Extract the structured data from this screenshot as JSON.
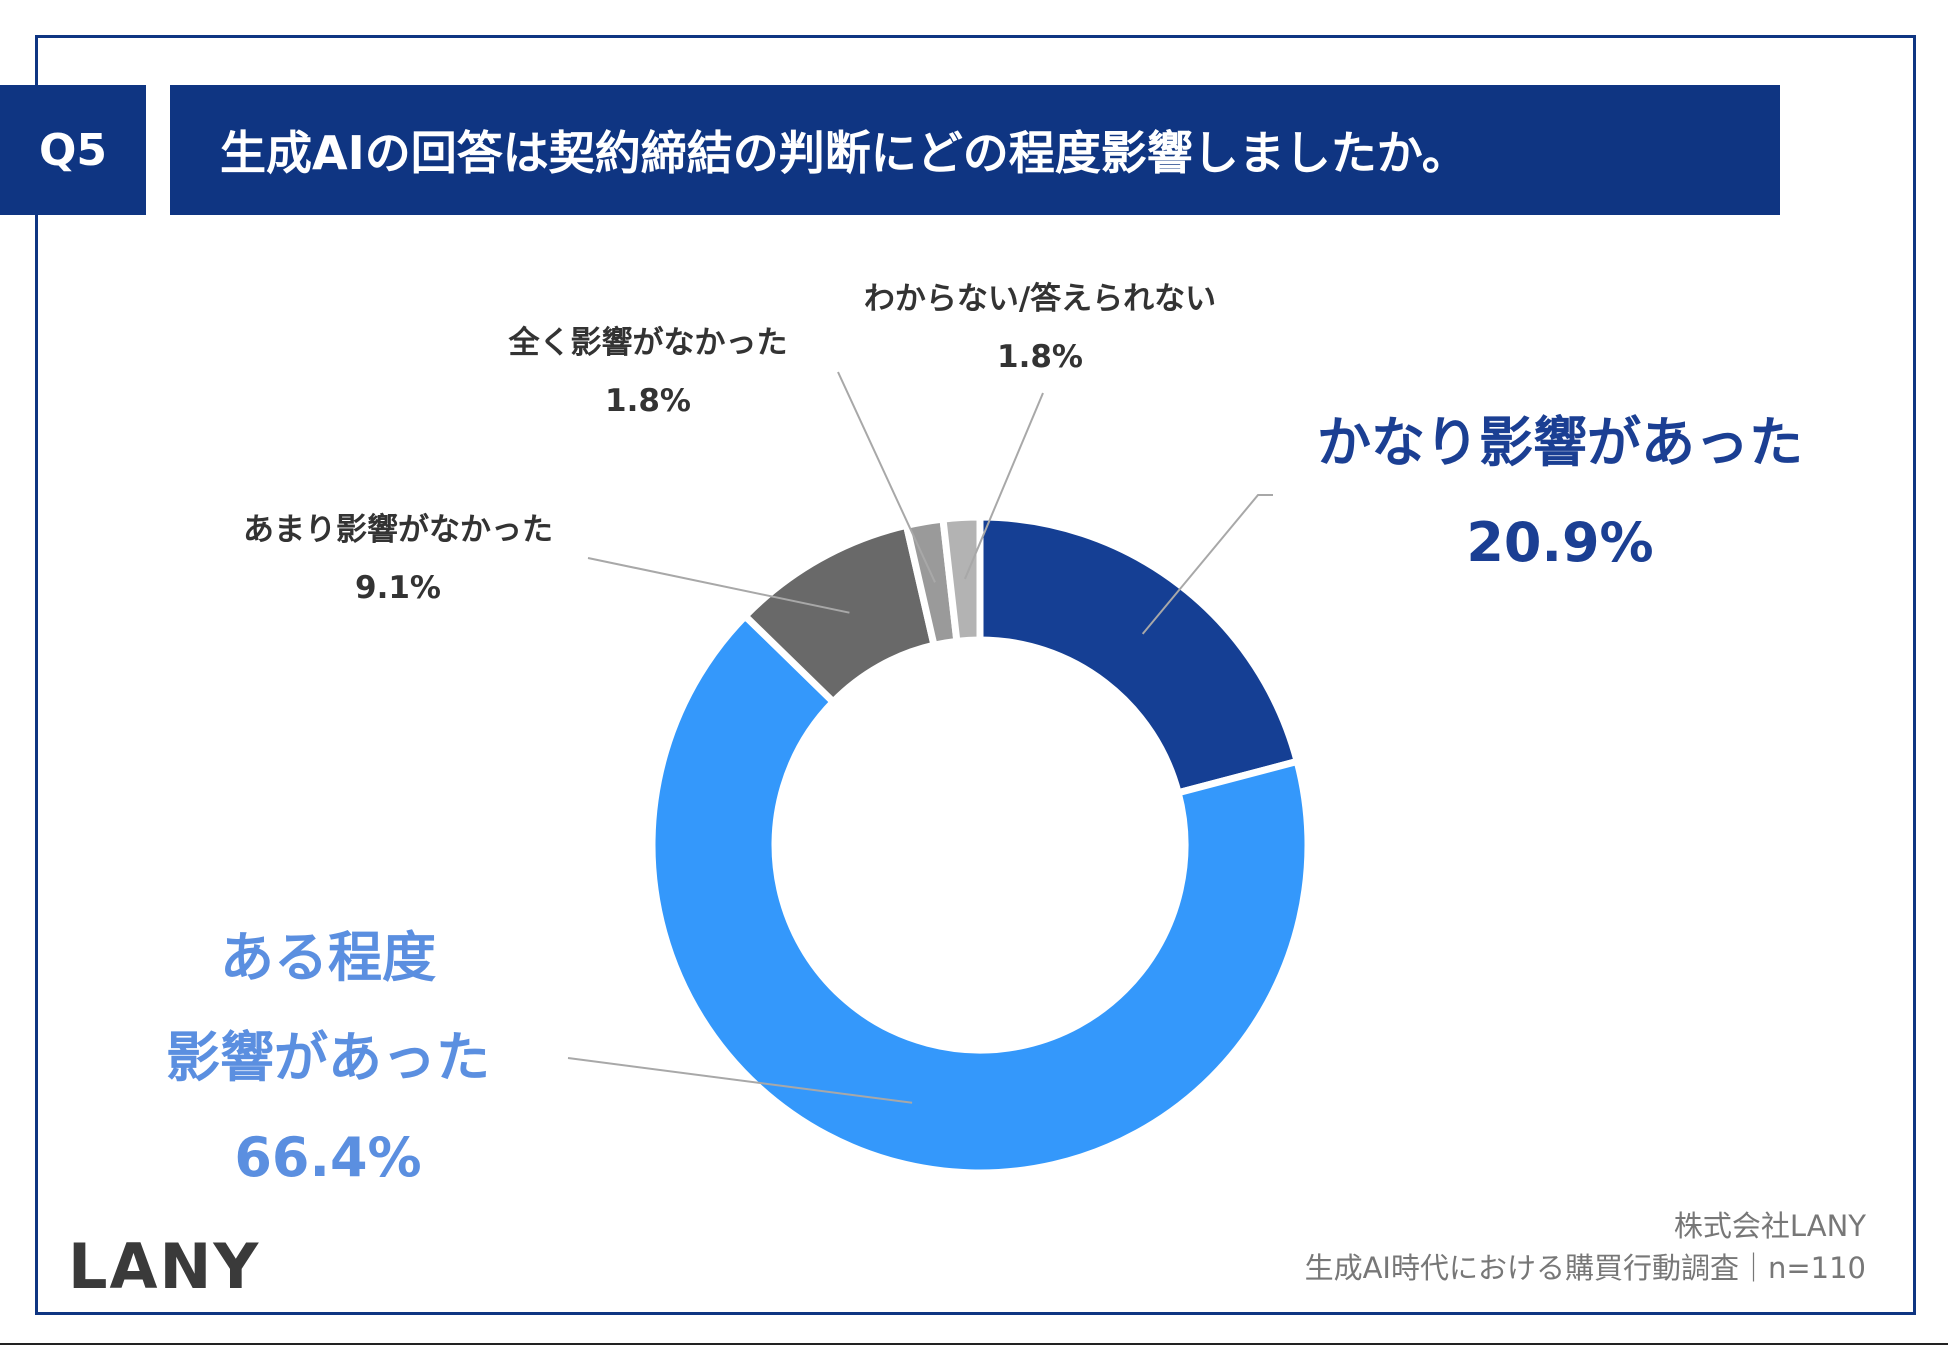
{
  "header": {
    "question_number": "Q5",
    "title": "生成AIの回答は契約締結の判断にどの程度影響しましたか。"
  },
  "chart_data": {
    "type": "pie",
    "donut": true,
    "slices": [
      {
        "label": "かなり影響があった",
        "value": 20.9,
        "value_label": "20.9%",
        "color": "#153f94"
      },
      {
        "label": "ある程度影響があった",
        "value": 66.4,
        "value_label": "66.4%",
        "color": "#3498fb"
      },
      {
        "label": "あまり影響がなかった",
        "value": 9.1,
        "value_label": "9.1%",
        "color": "#696969"
      },
      {
        "label": "全く影響がなかった",
        "value": 1.8,
        "value_label": "1.8%",
        "color": "#9a9a9a"
      },
      {
        "label": "わからない/答えられない",
        "value": 1.8,
        "value_label": "1.8%",
        "color": "#b3b3b3"
      }
    ],
    "annotations": {
      "large_light_line1": "ある程度",
      "large_light_line2": "影響があった"
    }
  },
  "footer": {
    "logo": "LANY",
    "company": "株式会社LANY",
    "survey": "生成AI時代における購買行動調査｜n=110"
  }
}
